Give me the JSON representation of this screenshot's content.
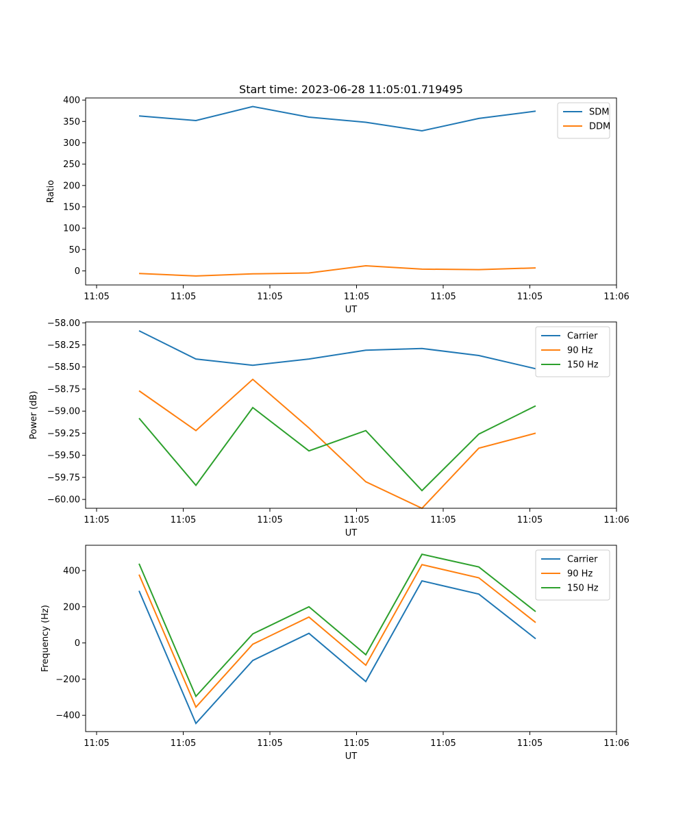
{
  "figure": {
    "title": "Start time: 2023-06-28 11:05:01.719495"
  },
  "chart_data": [
    {
      "type": "line",
      "xlabel": "UT",
      "ylabel": "Ratio",
      "x_tick_labels": [
        "11:05",
        "11:05",
        "11:05",
        "11:05",
        "11:05",
        "11:05",
        "11:06"
      ],
      "y_ticks": [
        0,
        50,
        100,
        150,
        200,
        250,
        300,
        350,
        400
      ],
      "y_tick_labels": [
        "0",
        "50",
        "100",
        "150",
        "200",
        "250",
        "300",
        "350",
        "400"
      ],
      "ylim": [
        -33,
        405
      ],
      "legend_position": "upper right",
      "grid": false,
      "series": [
        {
          "name": "SDM",
          "color": "#1f77b4",
          "values": [
            363,
            352,
            385,
            360,
            348,
            328,
            357,
            374
          ]
        },
        {
          "name": "DDM",
          "color": "#ff7f0e",
          "values": [
            -6,
            -12,
            -7,
            -5,
            12,
            4,
            3,
            7
          ]
        }
      ]
    },
    {
      "type": "line",
      "xlabel": "UT",
      "ylabel": "Power (dB)",
      "x_tick_labels": [
        "11:05",
        "11:05",
        "11:05",
        "11:05",
        "11:05",
        "11:05",
        "11:06"
      ],
      "y_ticks": [
        -60.0,
        -59.75,
        -59.5,
        -59.25,
        -59.0,
        -58.75,
        -58.5,
        -58.25,
        -58.0
      ],
      "y_tick_labels": [
        "−60.00",
        "−59.75",
        "−59.50",
        "−59.25",
        "−59.00",
        "−58.75",
        "−58.50",
        "−58.25",
        "−58.00"
      ],
      "ylim": [
        -60.1,
        -57.99
      ],
      "legend_position": "upper right",
      "grid": false,
      "series": [
        {
          "name": "Carrier",
          "color": "#1f77b4",
          "values": [
            -58.09,
            -58.41,
            -58.48,
            -58.41,
            -58.31,
            -58.29,
            -58.37,
            -58.52
          ]
        },
        {
          "name": "90 Hz",
          "color": "#ff7f0e",
          "values": [
            -58.77,
            -59.22,
            -58.64,
            -59.19,
            -59.8,
            -60.1,
            -59.42,
            -59.25
          ]
        },
        {
          "name": "150 Hz",
          "color": "#2ca02c",
          "values": [
            -59.08,
            -59.84,
            -58.96,
            -59.45,
            -59.22,
            -59.9,
            -59.26,
            -58.94
          ]
        }
      ]
    },
    {
      "type": "line",
      "xlabel": "UT",
      "ylabel": "Frequency (Hz)",
      "x_tick_labels": [
        "11:05",
        "11:05",
        "11:05",
        "11:05",
        "11:05",
        "11:05",
        "11:06"
      ],
      "y_ticks": [
        -400,
        -200,
        0,
        200,
        400
      ],
      "y_tick_labels": [
        "−400",
        "−200",
        "0",
        "200",
        "400"
      ],
      "ylim": [
        -490,
        540
      ],
      "legend_position": "upper right",
      "grid": false,
      "series": [
        {
          "name": "Carrier",
          "color": "#1f77b4",
          "values": [
            288,
            -445,
            -97,
            53,
            -213,
            343,
            270,
            23
          ]
        },
        {
          "name": "90 Hz",
          "color": "#ff7f0e",
          "values": [
            378,
            -355,
            -7,
            143,
            -123,
            433,
            360,
            113
          ]
        },
        {
          "name": "150 Hz",
          "color": "#2ca02c",
          "values": [
            438,
            -295,
            50,
            200,
            -65,
            490,
            420,
            173
          ]
        }
      ]
    }
  ]
}
